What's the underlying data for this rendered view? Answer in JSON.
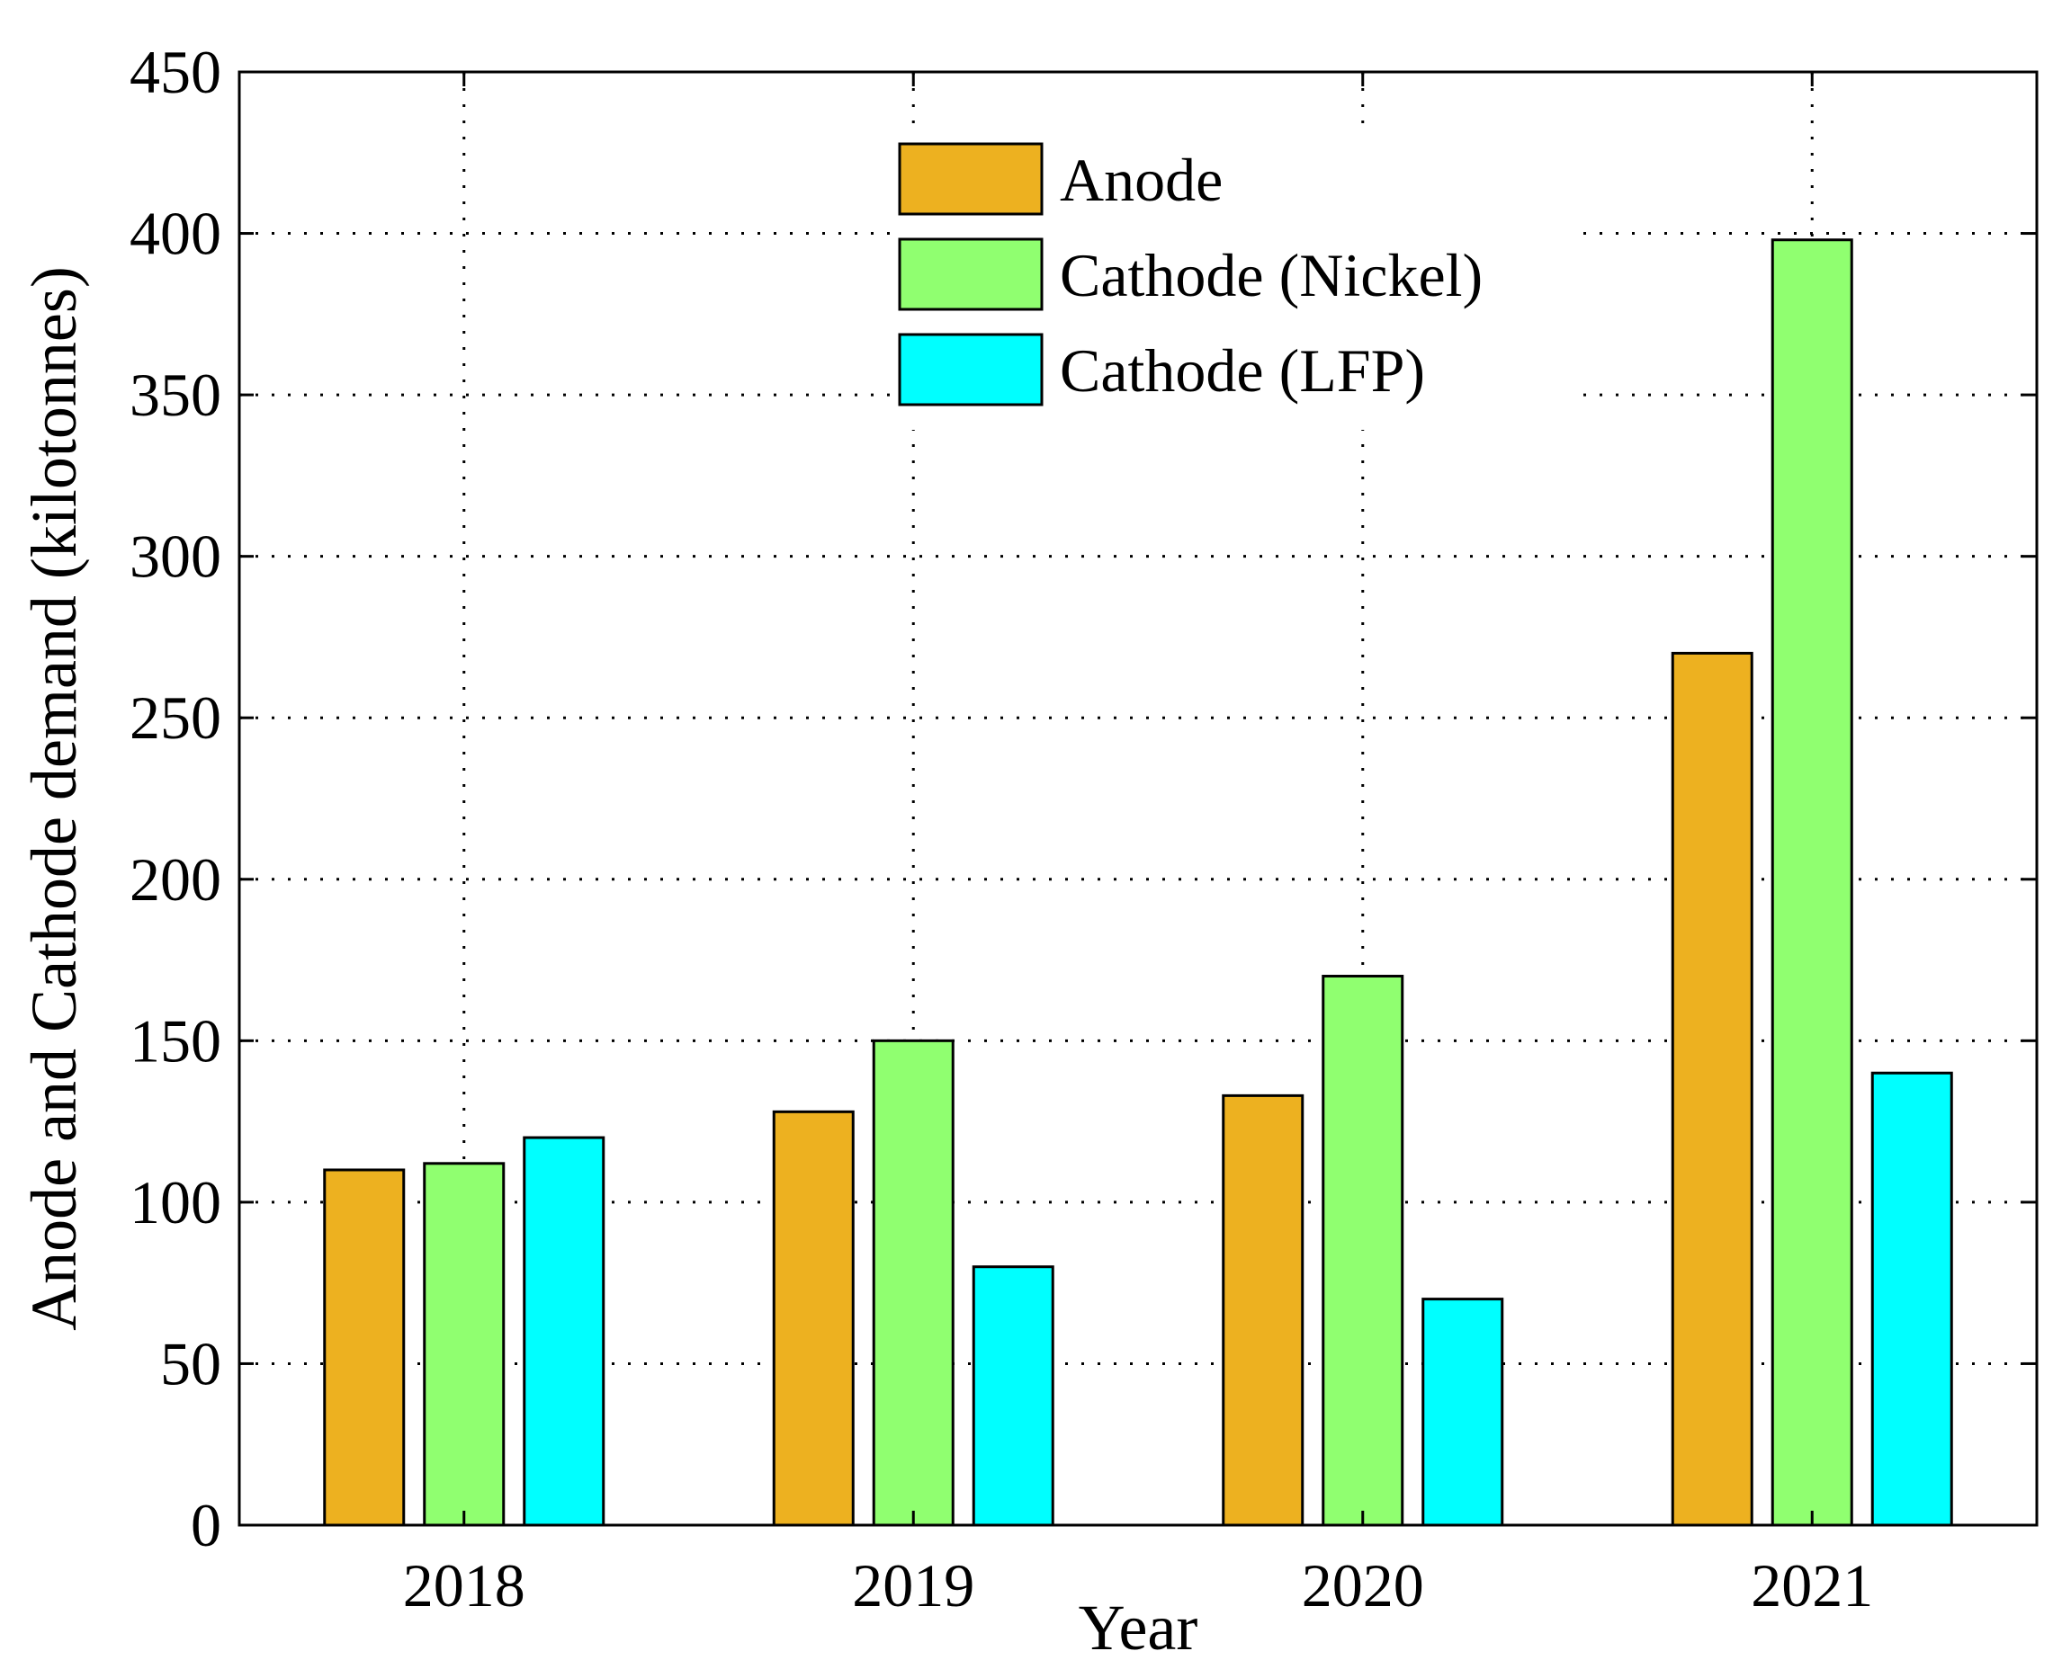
{
  "chart_data": {
    "type": "bar",
    "title": "",
    "xlabel": "Year",
    "ylabel": "Anode and Cathode demand (kilotonnes)",
    "categories": [
      "2018",
      "2019",
      "2020",
      "2021"
    ],
    "series": [
      {
        "name": "Anode",
        "color": "#EDB120",
        "values": [
          110,
          128,
          133,
          270
        ]
      },
      {
        "name": "Cathode (Nickel)",
        "color": "#90FF70",
        "values": [
          112,
          150,
          170,
          398
        ]
      },
      {
        "name": "Cathode (LFP)",
        "color": "#00FFFF",
        "values": [
          120,
          80,
          70,
          140
        ]
      }
    ],
    "ylim": [
      0,
      450
    ],
    "yticks": [
      0,
      50,
      100,
      150,
      200,
      250,
      300,
      350,
      400,
      450
    ],
    "grid": true,
    "legend_position": "top-center"
  }
}
